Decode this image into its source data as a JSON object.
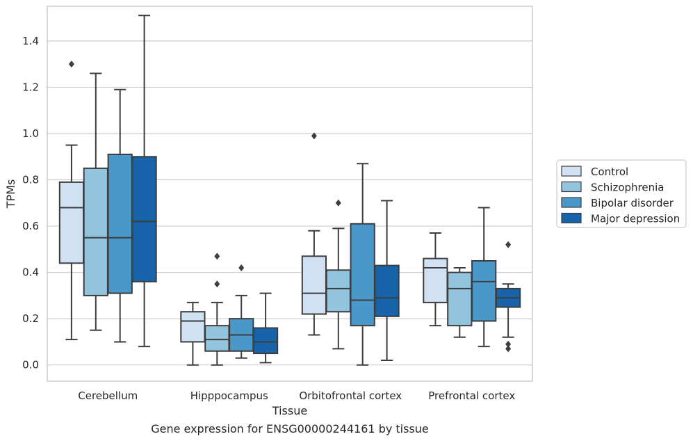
{
  "chart_data": {
    "type": "box",
    "ylabel": "TPMs",
    "xlabel": "Tissue",
    "caption": "Gene expression for ENSG00000244161 by tissue",
    "ylim": [
      -0.07,
      1.55
    ],
    "yticks": [
      0.0,
      0.2,
      0.4,
      0.6,
      0.8,
      1.0,
      1.2,
      1.4
    ],
    "ytick_labels": [
      "0.0",
      "0.2",
      "0.4",
      "0.6",
      "0.8",
      "1.0",
      "1.2",
      "1.4"
    ],
    "grid": "horizontal",
    "legend_placement": "right",
    "categories": [
      "Cerebellum",
      "Hipppocampus",
      "Orbitofrontal cortex",
      "Prefrontal cortex"
    ],
    "series": [
      {
        "name": "Control",
        "color": "#cfe1f2",
        "boxes": [
          {
            "whislo": 0.11,
            "q1": 0.44,
            "med": 0.68,
            "q3": 0.79,
            "whishi": 0.95,
            "fliers": [
              1.3
            ]
          },
          {
            "whislo": 0.0,
            "q1": 0.1,
            "med": 0.19,
            "q3": 0.23,
            "whishi": 0.27,
            "fliers": []
          },
          {
            "whislo": 0.13,
            "q1": 0.22,
            "med": 0.31,
            "q3": 0.47,
            "whishi": 0.58,
            "fliers": [
              0.99
            ]
          },
          {
            "whislo": 0.17,
            "q1": 0.27,
            "med": 0.42,
            "q3": 0.46,
            "whishi": 0.57,
            "fliers": []
          }
        ]
      },
      {
        "name": "Schizophrenia",
        "color": "#93c4de",
        "boxes": [
          {
            "whislo": 0.15,
            "q1": 0.3,
            "med": 0.55,
            "q3": 0.85,
            "whishi": 1.26,
            "fliers": []
          },
          {
            "whislo": 0.0,
            "q1": 0.06,
            "med": 0.11,
            "q3": 0.17,
            "whishi": 0.27,
            "fliers": [
              0.35,
              0.47
            ]
          },
          {
            "whislo": 0.07,
            "q1": 0.23,
            "med": 0.33,
            "q3": 0.41,
            "whishi": 0.59,
            "fliers": [
              0.7
            ]
          },
          {
            "whislo": 0.12,
            "q1": 0.17,
            "med": 0.33,
            "q3": 0.4,
            "whishi": 0.42,
            "fliers": []
          }
        ]
      },
      {
        "name": "Bipolar disorder",
        "color": "#4a98c9",
        "boxes": [
          {
            "whislo": 0.1,
            "q1": 0.31,
            "med": 0.55,
            "q3": 0.91,
            "whishi": 1.19,
            "fliers": []
          },
          {
            "whislo": 0.03,
            "q1": 0.06,
            "med": 0.13,
            "q3": 0.2,
            "whishi": 0.3,
            "fliers": [
              0.42
            ]
          },
          {
            "whislo": 0.0,
            "q1": 0.17,
            "med": 0.28,
            "q3": 0.61,
            "whishi": 0.87,
            "fliers": []
          },
          {
            "whislo": 0.08,
            "q1": 0.19,
            "med": 0.36,
            "q3": 0.45,
            "whishi": 0.68,
            "fliers": []
          }
        ]
      },
      {
        "name": "Major depression",
        "color": "#1764ab",
        "boxes": [
          {
            "whislo": 0.08,
            "q1": 0.36,
            "med": 0.62,
            "q3": 0.9,
            "whishi": 1.51,
            "fliers": []
          },
          {
            "whislo": 0.01,
            "q1": 0.05,
            "med": 0.1,
            "q3": 0.16,
            "whishi": 0.31,
            "fliers": []
          },
          {
            "whislo": 0.02,
            "q1": 0.21,
            "med": 0.29,
            "q3": 0.43,
            "whishi": 0.71,
            "fliers": []
          },
          {
            "whislo": 0.12,
            "q1": 0.25,
            "med": 0.29,
            "q3": 0.33,
            "whishi": 0.35,
            "fliers": [
              0.52,
              0.09,
              0.07
            ]
          }
        ]
      }
    ]
  }
}
